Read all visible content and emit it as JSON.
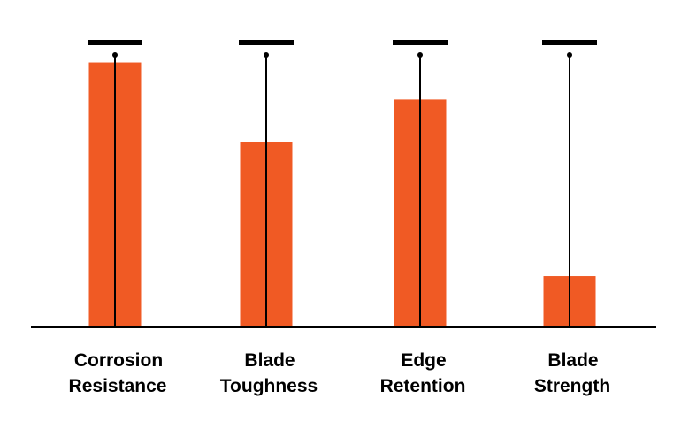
{
  "chart_data": {
    "type": "bar",
    "categories": [
      [
        "Corrosion",
        "Resistance"
      ],
      [
        "Blade",
        "Toughness"
      ],
      [
        "Edge",
        "Retention"
      ],
      [
        "Blade",
        "Strength"
      ]
    ],
    "values": [
      9.3,
      6.5,
      8.0,
      1.8
    ],
    "max_values": [
      10,
      10,
      10,
      10
    ],
    "ylim": [
      0,
      10
    ],
    "title": "",
    "xlabel": "",
    "ylabel": "",
    "grid": false,
    "legend": "none",
    "colors": {
      "bar": "#F05A24",
      "axis": "#000000",
      "marker": "#000000",
      "label": "#000000"
    }
  }
}
